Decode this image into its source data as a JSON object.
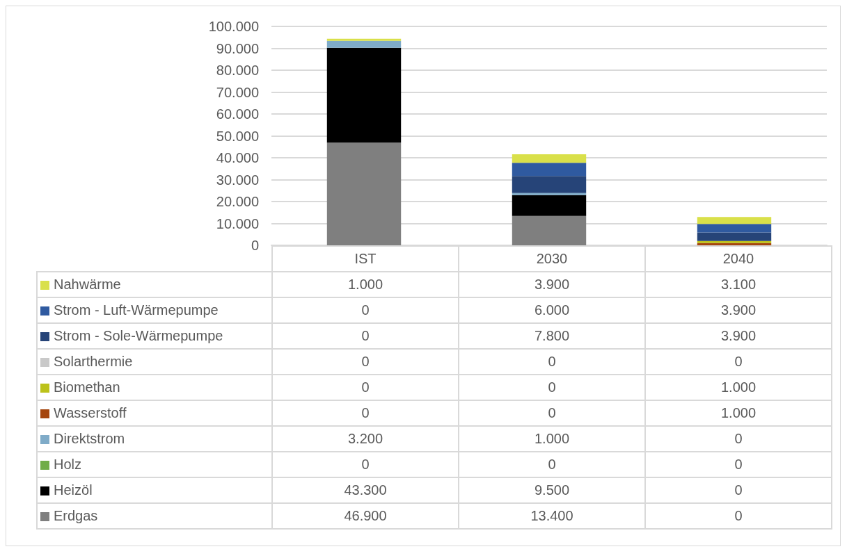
{
  "chart_data": {
    "type": "bar",
    "stacked": true,
    "categories": [
      "IST",
      "2030",
      "2040"
    ],
    "series": [
      {
        "name": "Erdgas",
        "color": "#7f7f7f",
        "values": [
          46900,
          13400,
          0
        ],
        "value_labels": [
          "46.900",
          "13.400",
          "0"
        ]
      },
      {
        "name": "Heizöl",
        "color": "#000000",
        "values": [
          43300,
          9500,
          0
        ],
        "value_labels": [
          "43.300",
          "9.500",
          "0"
        ]
      },
      {
        "name": "Holz",
        "color": "#70ad47",
        "values": [
          0,
          0,
          0
        ],
        "value_labels": [
          "0",
          "0",
          "0"
        ]
      },
      {
        "name": "Direktstrom",
        "color": "#7fabc8",
        "values": [
          3200,
          1000,
          0
        ],
        "value_labels": [
          "3.200",
          "1.000",
          "0"
        ]
      },
      {
        "name": "Wasserstoff",
        "color": "#a5460e",
        "values": [
          0,
          0,
          1000
        ],
        "value_labels": [
          "0",
          "0",
          "1.000"
        ]
      },
      {
        "name": "Biomethan",
        "color": "#bcc21a",
        "values": [
          0,
          0,
          1000
        ],
        "value_labels": [
          "0",
          "0",
          "1.000"
        ]
      },
      {
        "name": "Solarthermie",
        "color": "#c9c9c9",
        "values": [
          0,
          0,
          0
        ],
        "value_labels": [
          "0",
          "0",
          "0"
        ]
      },
      {
        "name": "Strom - Sole-Wärmepumpe",
        "color": "#264478",
        "values": [
          0,
          7800,
          3900
        ],
        "value_labels": [
          "0",
          "7.800",
          "3.900"
        ]
      },
      {
        "name": "Strom - Luft-Wärmepumpe",
        "color": "#2f5aa0",
        "values": [
          0,
          6000,
          3900
        ],
        "value_labels": [
          "0",
          "6.000",
          "3.900"
        ]
      },
      {
        "name": "Nahwärme",
        "color": "#d9e04a",
        "values": [
          1000,
          3900,
          3100
        ],
        "value_labels": [
          "1.000",
          "3.900",
          "3.100"
        ]
      }
    ],
    "ylim": [
      0,
      100000
    ],
    "yticks": [
      {
        "value": 0,
        "label": "0"
      },
      {
        "value": 10000,
        "label": "10.000"
      },
      {
        "value": 20000,
        "label": "20.000"
      },
      {
        "value": 30000,
        "label": "30.000"
      },
      {
        "value": 40000,
        "label": "40.000"
      },
      {
        "value": 50000,
        "label": "50.000"
      },
      {
        "value": 60000,
        "label": "60.000"
      },
      {
        "value": 70000,
        "label": "70.000"
      },
      {
        "value": 80000,
        "label": "80.000"
      },
      {
        "value": 90000,
        "label": "90.000"
      },
      {
        "value": 100000,
        "label": "100.000"
      }
    ],
    "grid": "y",
    "legend": "bottom"
  }
}
